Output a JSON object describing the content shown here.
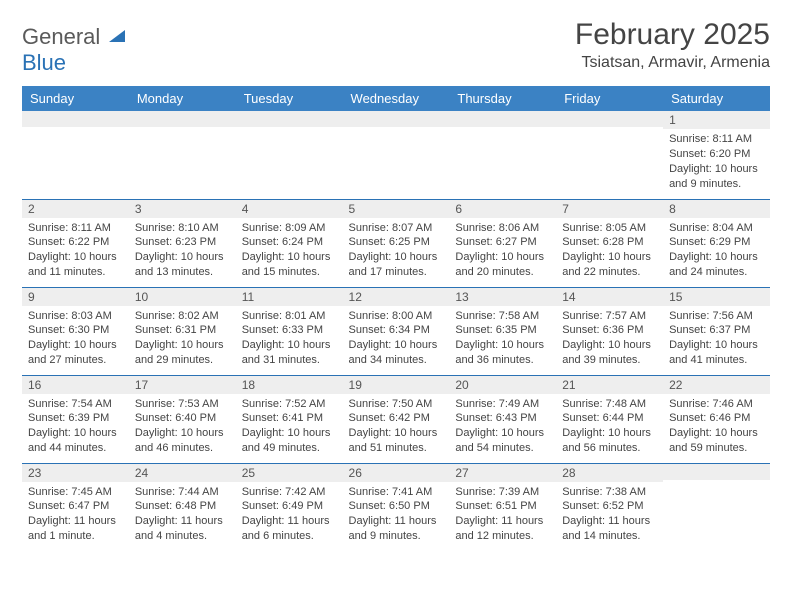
{
  "brand": {
    "general": "General",
    "blue": "Blue"
  },
  "title": {
    "month": "February 2025",
    "location": "Tsiatsan, Armavir, Armenia"
  },
  "colors": {
    "header_bg": "#3b82c4",
    "border": "#2a72b5",
    "daynum_bg": "#eeeeee"
  },
  "weekdays": [
    "Sunday",
    "Monday",
    "Tuesday",
    "Wednesday",
    "Thursday",
    "Friday",
    "Saturday"
  ],
  "weeks": [
    [
      {
        "day": "",
        "sunrise": "",
        "sunset": "",
        "daylight": ""
      },
      {
        "day": "",
        "sunrise": "",
        "sunset": "",
        "daylight": ""
      },
      {
        "day": "",
        "sunrise": "",
        "sunset": "",
        "daylight": ""
      },
      {
        "day": "",
        "sunrise": "",
        "sunset": "",
        "daylight": ""
      },
      {
        "day": "",
        "sunrise": "",
        "sunset": "",
        "daylight": ""
      },
      {
        "day": "",
        "sunrise": "",
        "sunset": "",
        "daylight": ""
      },
      {
        "day": "1",
        "sunrise": "Sunrise: 8:11 AM",
        "sunset": "Sunset: 6:20 PM",
        "daylight": "Daylight: 10 hours and 9 minutes."
      }
    ],
    [
      {
        "day": "2",
        "sunrise": "Sunrise: 8:11 AM",
        "sunset": "Sunset: 6:22 PM",
        "daylight": "Daylight: 10 hours and 11 minutes."
      },
      {
        "day": "3",
        "sunrise": "Sunrise: 8:10 AM",
        "sunset": "Sunset: 6:23 PM",
        "daylight": "Daylight: 10 hours and 13 minutes."
      },
      {
        "day": "4",
        "sunrise": "Sunrise: 8:09 AM",
        "sunset": "Sunset: 6:24 PM",
        "daylight": "Daylight: 10 hours and 15 minutes."
      },
      {
        "day": "5",
        "sunrise": "Sunrise: 8:07 AM",
        "sunset": "Sunset: 6:25 PM",
        "daylight": "Daylight: 10 hours and 17 minutes."
      },
      {
        "day": "6",
        "sunrise": "Sunrise: 8:06 AM",
        "sunset": "Sunset: 6:27 PM",
        "daylight": "Daylight: 10 hours and 20 minutes."
      },
      {
        "day": "7",
        "sunrise": "Sunrise: 8:05 AM",
        "sunset": "Sunset: 6:28 PM",
        "daylight": "Daylight: 10 hours and 22 minutes."
      },
      {
        "day": "8",
        "sunrise": "Sunrise: 8:04 AM",
        "sunset": "Sunset: 6:29 PM",
        "daylight": "Daylight: 10 hours and 24 minutes."
      }
    ],
    [
      {
        "day": "9",
        "sunrise": "Sunrise: 8:03 AM",
        "sunset": "Sunset: 6:30 PM",
        "daylight": "Daylight: 10 hours and 27 minutes."
      },
      {
        "day": "10",
        "sunrise": "Sunrise: 8:02 AM",
        "sunset": "Sunset: 6:31 PM",
        "daylight": "Daylight: 10 hours and 29 minutes."
      },
      {
        "day": "11",
        "sunrise": "Sunrise: 8:01 AM",
        "sunset": "Sunset: 6:33 PM",
        "daylight": "Daylight: 10 hours and 31 minutes."
      },
      {
        "day": "12",
        "sunrise": "Sunrise: 8:00 AM",
        "sunset": "Sunset: 6:34 PM",
        "daylight": "Daylight: 10 hours and 34 minutes."
      },
      {
        "day": "13",
        "sunrise": "Sunrise: 7:58 AM",
        "sunset": "Sunset: 6:35 PM",
        "daylight": "Daylight: 10 hours and 36 minutes."
      },
      {
        "day": "14",
        "sunrise": "Sunrise: 7:57 AM",
        "sunset": "Sunset: 6:36 PM",
        "daylight": "Daylight: 10 hours and 39 minutes."
      },
      {
        "day": "15",
        "sunrise": "Sunrise: 7:56 AM",
        "sunset": "Sunset: 6:37 PM",
        "daylight": "Daylight: 10 hours and 41 minutes."
      }
    ],
    [
      {
        "day": "16",
        "sunrise": "Sunrise: 7:54 AM",
        "sunset": "Sunset: 6:39 PM",
        "daylight": "Daylight: 10 hours and 44 minutes."
      },
      {
        "day": "17",
        "sunrise": "Sunrise: 7:53 AM",
        "sunset": "Sunset: 6:40 PM",
        "daylight": "Daylight: 10 hours and 46 minutes."
      },
      {
        "day": "18",
        "sunrise": "Sunrise: 7:52 AM",
        "sunset": "Sunset: 6:41 PM",
        "daylight": "Daylight: 10 hours and 49 minutes."
      },
      {
        "day": "19",
        "sunrise": "Sunrise: 7:50 AM",
        "sunset": "Sunset: 6:42 PM",
        "daylight": "Daylight: 10 hours and 51 minutes."
      },
      {
        "day": "20",
        "sunrise": "Sunrise: 7:49 AM",
        "sunset": "Sunset: 6:43 PM",
        "daylight": "Daylight: 10 hours and 54 minutes."
      },
      {
        "day": "21",
        "sunrise": "Sunrise: 7:48 AM",
        "sunset": "Sunset: 6:44 PM",
        "daylight": "Daylight: 10 hours and 56 minutes."
      },
      {
        "day": "22",
        "sunrise": "Sunrise: 7:46 AM",
        "sunset": "Sunset: 6:46 PM",
        "daylight": "Daylight: 10 hours and 59 minutes."
      }
    ],
    [
      {
        "day": "23",
        "sunrise": "Sunrise: 7:45 AM",
        "sunset": "Sunset: 6:47 PM",
        "daylight": "Daylight: 11 hours and 1 minute."
      },
      {
        "day": "24",
        "sunrise": "Sunrise: 7:44 AM",
        "sunset": "Sunset: 6:48 PM",
        "daylight": "Daylight: 11 hours and 4 minutes."
      },
      {
        "day": "25",
        "sunrise": "Sunrise: 7:42 AM",
        "sunset": "Sunset: 6:49 PM",
        "daylight": "Daylight: 11 hours and 6 minutes."
      },
      {
        "day": "26",
        "sunrise": "Sunrise: 7:41 AM",
        "sunset": "Sunset: 6:50 PM",
        "daylight": "Daylight: 11 hours and 9 minutes."
      },
      {
        "day": "27",
        "sunrise": "Sunrise: 7:39 AM",
        "sunset": "Sunset: 6:51 PM",
        "daylight": "Daylight: 11 hours and 12 minutes."
      },
      {
        "day": "28",
        "sunrise": "Sunrise: 7:38 AM",
        "sunset": "Sunset: 6:52 PM",
        "daylight": "Daylight: 11 hours and 14 minutes."
      },
      {
        "day": "",
        "sunrise": "",
        "sunset": "",
        "daylight": ""
      }
    ]
  ]
}
